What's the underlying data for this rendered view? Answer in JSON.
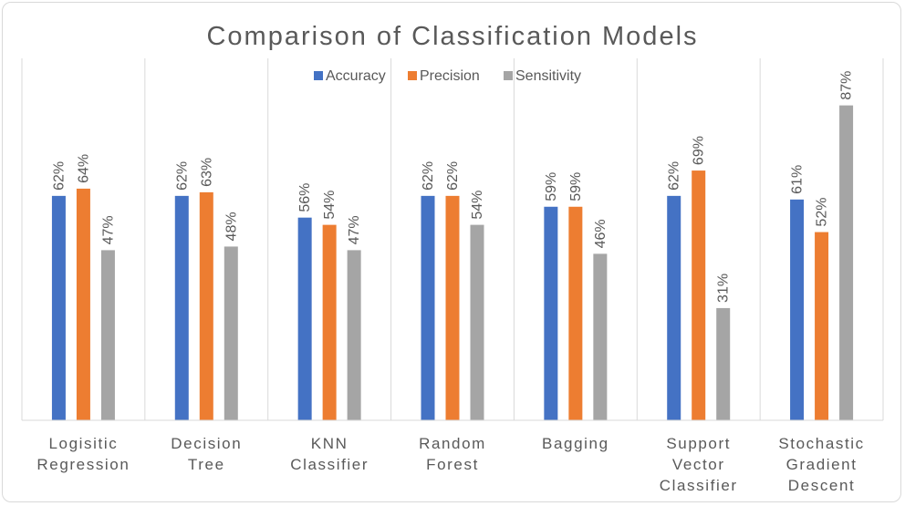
{
  "chart_data": {
    "type": "bar",
    "title": "Comparison of Classification Models",
    "categories": [
      [
        "Logisitic",
        "Regression"
      ],
      [
        "Decision",
        "Tree"
      ],
      [
        "KNN",
        "Classifier"
      ],
      [
        "Random",
        "Forest"
      ],
      [
        "Bagging"
      ],
      [
        "Support",
        "Vector",
        "Classifier"
      ],
      [
        "Stochastic",
        "Gradient",
        "Descent"
      ]
    ],
    "series": [
      {
        "name": "Accuracy",
        "color": "#4472c4",
        "values": [
          62,
          62,
          56,
          62,
          59,
          62,
          61
        ]
      },
      {
        "name": "Precision",
        "color": "#ed7d31",
        "values": [
          64,
          63,
          54,
          62,
          59,
          69,
          52
        ]
      },
      {
        "name": "Sensitivity",
        "color": "#a5a5a5",
        "values": [
          47,
          48,
          47,
          54,
          46,
          31,
          87
        ]
      }
    ],
    "value_suffix": "%",
    "ylim": [
      0,
      100
    ],
    "legend_position": "top",
    "grid": "vertical category separators"
  }
}
